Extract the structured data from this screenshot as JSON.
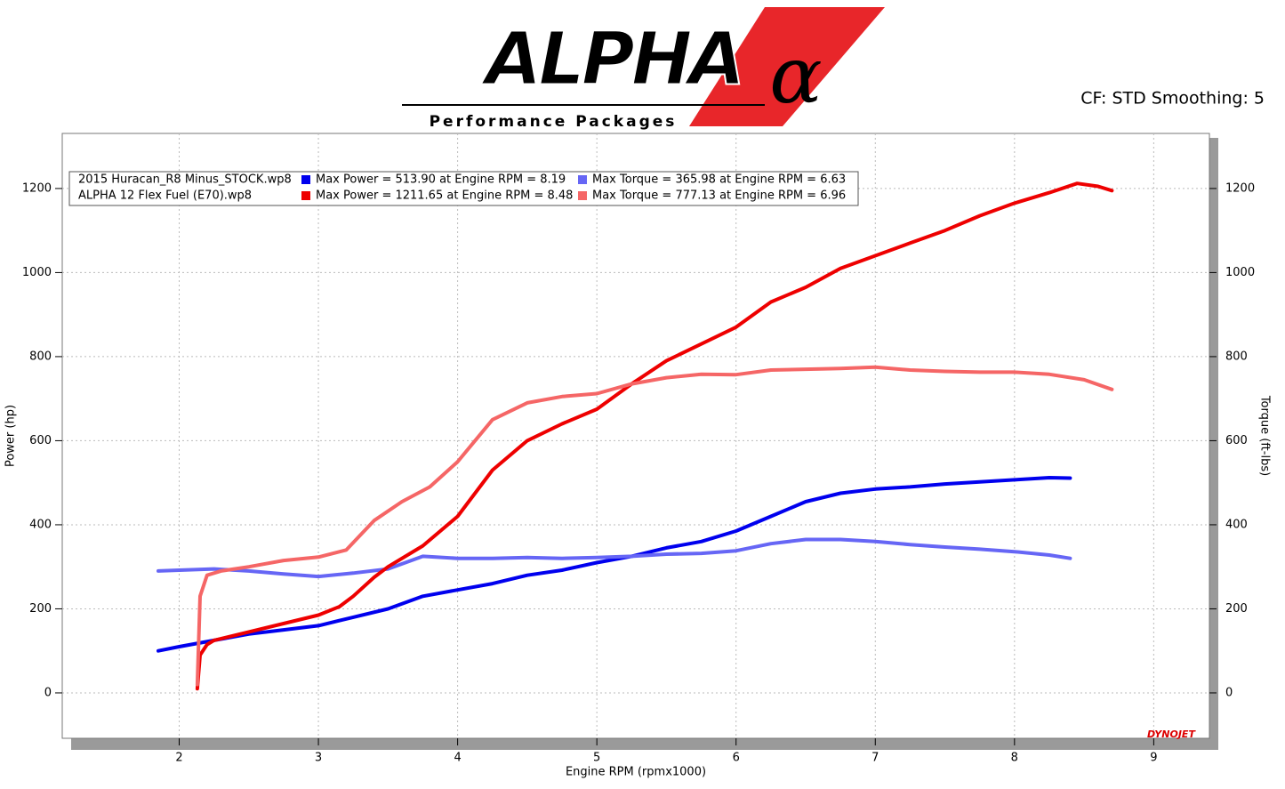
{
  "header": {
    "logo": "ALPHA",
    "symbol": "α",
    "tagline": "Performance Packages",
    "settings": "CF: STD Smoothing: 5"
  },
  "chart_data": {
    "type": "line",
    "xlabel": "Engine RPM (rpmx1000)",
    "ylabel": "Power (hp)",
    "y2label": "Torque (ft-lbs)",
    "watermark": "DYNOJET",
    "runs": [
      "2015 Huracan_R8 Minus_STOCK.wp8",
      "ALPHA 12 Flex Fuel (E70).wp8"
    ],
    "xlim": [
      1.16,
      9.4
    ],
    "xticks": [
      2,
      3,
      4,
      5,
      6,
      7,
      8,
      9
    ],
    "ylim": [
      -108,
      1331
    ],
    "yticks": [
      0,
      200,
      400,
      600,
      800,
      1000,
      1200
    ],
    "y2lim": [
      -108,
      1331
    ],
    "y2ticks": [
      0,
      200,
      400,
      600,
      800,
      1000,
      1200
    ],
    "grid": true,
    "series": [
      {
        "name": "Max Power = 513.90 at Engine RPM = 8.19",
        "color": "#0000ee",
        "x": [
          1.85,
          2.0,
          2.25,
          2.5,
          2.75,
          3.0,
          3.25,
          3.5,
          3.75,
          4.0,
          4.25,
          4.5,
          4.75,
          5.0,
          5.25,
          5.5,
          5.75,
          6.0,
          6.25,
          6.5,
          6.75,
          7.0,
          7.25,
          7.5,
          7.75,
          8.0,
          8.25,
          8.4
        ],
        "values": [
          100,
          110,
          125,
          140,
          150,
          160,
          180,
          200,
          230,
          245,
          260,
          280,
          292,
          310,
          325,
          345,
          360,
          385,
          420,
          455,
          475,
          485,
          490,
          497,
          502,
          507,
          512,
          511
        ]
      },
      {
        "name": "Max Torque = 365.98 at Engine RPM = 6.63",
        "color": "#6666f5",
        "axis": "y2",
        "x": [
          1.85,
          2.0,
          2.25,
          2.5,
          2.75,
          3.0,
          3.25,
          3.5,
          3.75,
          4.0,
          4.25,
          4.5,
          4.75,
          5.0,
          5.25,
          5.5,
          5.75,
          6.0,
          6.25,
          6.5,
          6.75,
          7.0,
          7.25,
          7.5,
          7.75,
          8.0,
          8.25,
          8.4
        ],
        "values": [
          290,
          292,
          295,
          290,
          283,
          277,
          285,
          295,
          325,
          320,
          320,
          322,
          320,
          322,
          325,
          330,
          332,
          338,
          355,
          365,
          365,
          360,
          353,
          347,
          342,
          336,
          328,
          320
        ]
      },
      {
        "name": "Max Power = 1211.65 at Engine RPM = 8.48",
        "color": "#ee0000",
        "x": [
          2.13,
          2.15,
          2.2,
          2.25,
          2.5,
          2.75,
          3.0,
          3.15,
          3.25,
          3.4,
          3.5,
          3.75,
          4.0,
          4.25,
          4.5,
          4.75,
          5.0,
          5.25,
          5.5,
          5.75,
          6.0,
          6.25,
          6.5,
          6.75,
          7.0,
          7.25,
          7.5,
          7.75,
          8.0,
          8.25,
          8.45,
          8.6,
          8.7
        ],
        "values": [
          10,
          90,
          115,
          125,
          145,
          165,
          185,
          205,
          230,
          275,
          300,
          350,
          420,
          530,
          600,
          640,
          675,
          735,
          790,
          830,
          870,
          930,
          965,
          1010,
          1040,
          1070,
          1100,
          1135,
          1165,
          1190,
          1212,
          1205,
          1195
        ]
      },
      {
        "name": "Max Torque = 777.13 at Engine RPM = 6.96",
        "color": "#f56666",
        "axis": "y2",
        "x": [
          2.13,
          2.15,
          2.2,
          2.3,
          2.5,
          2.75,
          3.0,
          3.2,
          3.4,
          3.6,
          3.8,
          4.0,
          4.25,
          4.5,
          4.75,
          5.0,
          5.25,
          5.5,
          5.75,
          6.0,
          6.25,
          6.5,
          6.75,
          7.0,
          7.25,
          7.5,
          7.75,
          8.0,
          8.25,
          8.5,
          8.7
        ],
        "values": [
          20,
          230,
          280,
          290,
          300,
          315,
          323,
          340,
          410,
          455,
          490,
          550,
          650,
          690,
          705,
          712,
          735,
          750,
          758,
          757,
          768,
          770,
          772,
          775,
          768,
          765,
          763,
          763,
          758,
          745,
          722
        ]
      }
    ]
  }
}
